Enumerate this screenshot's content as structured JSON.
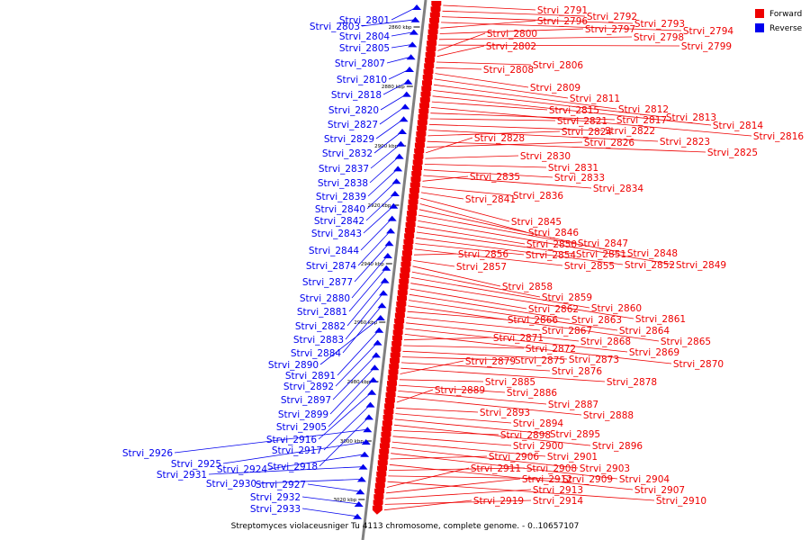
{
  "caption": "Streptomyces violaceusniger Tu 4113 chromosome, complete genome. - 0..10657107",
  "legend": {
    "items": [
      {
        "label": "Forward",
        "color": "#ee0000"
      },
      {
        "label": "Reverse",
        "color": "#0000ee"
      }
    ]
  },
  "colors": {
    "forward": "#ee0000",
    "reverse": "#0000ee",
    "axis": "#808080"
  },
  "ticks": [
    "2860 kbp",
    "2880 kbp",
    "2900 kbp",
    "2920 kbp",
    "2940 kbp",
    "2960 kbp",
    "2980 kbp",
    "3000 kbp",
    "3020 kbp"
  ],
  "reverse_genes": [
    "Strvi_2801",
    "Strvi_2803",
    "Strvi_2804",
    "Strvi_2805",
    "Strvi_2807",
    "Strvi_2810",
    "Strvi_2818",
    "Strvi_2820",
    "Strvi_2827",
    "Strvi_2829",
    "Strvi_2832",
    "Strvi_2837",
    "Strvi_2838",
    "Strvi_2839",
    "Strvi_2840",
    "Strvi_2842",
    "Strvi_2843",
    "Strvi_2844",
    "Strvi_2874",
    "Strvi_2877",
    "Strvi_2880",
    "Strvi_2881",
    "Strvi_2882",
    "Strvi_2883",
    "Strvi_2884",
    "Strvi_2890",
    "Strvi_2891",
    "Strvi_2892",
    "Strvi_2897",
    "Strvi_2899",
    "Strvi_2905",
    "Strvi_2916",
    "Strvi_2917",
    "Strvi_2918",
    "Strvi_2926",
    "Strvi_2925",
    "Strvi_2924",
    "Strvi_2931",
    "Strvi_2930",
    "Strvi_2927",
    "Strvi_2932",
    "Strvi_2933"
  ],
  "forward_genes": [
    "Strvi_2791",
    "Strvi_2792",
    "Strvi_2793",
    "Strvi_2794",
    "Strvi_2796",
    "Strvi_2797",
    "Strvi_2798",
    "Strvi_2799",
    "Strvi_2800",
    "Strvi_2802",
    "Strvi_2806",
    "Strvi_2808",
    "Strvi_2809",
    "Strvi_2811",
    "Strvi_2812",
    "Strvi_2813",
    "Strvi_2814",
    "Strvi_2815",
    "Strvi_2816",
    "Strvi_2817",
    "Strvi_2821",
    "Strvi_2822",
    "Strvi_2823",
    "Strvi_2824",
    "Strvi_2825",
    "Strvi_2826",
    "Strvi_2828",
    "Strvi_2830",
    "Strvi_2831",
    "Strvi_2833",
    "Strvi_2834",
    "Strvi_2835",
    "Strvi_2836",
    "Strvi_2841",
    "Strvi_2845",
    "Strvi_2846",
    "Strvi_2847",
    "Strvi_2848",
    "Strvi_2849",
    "Strvi_2850",
    "Strvi_2851",
    "Strvi_2852",
    "Strvi_2854",
    "Strvi_2855",
    "Strvi_2856",
    "Strvi_2857",
    "Strvi_2858",
    "Strvi_2859",
    "Strvi_2860",
    "Strvi_2861",
    "Strvi_2862",
    "Strvi_2863",
    "Strvi_2864",
    "Strvi_2865",
    "Strvi_2866",
    "Strvi_2867",
    "Strvi_2868",
    "Strvi_2869",
    "Strvi_2870",
    "Strvi_2871",
    "Strvi_2872",
    "Strvi_2873",
    "Strvi_2875",
    "Strvi_2876",
    "Strvi_2878",
    "Strvi_2879",
    "Strvi_2885",
    "Strvi_2886",
    "Strvi_2887",
    "Strvi_2888",
    "Strvi_2889",
    "Strvi_2893",
    "Strvi_2894",
    "Strvi_2895",
    "Strvi_2896",
    "Strvi_2898",
    "Strvi_2900",
    "Strvi_2901",
    "Strvi_2903",
    "Strvi_2904",
    "Strvi_2906",
    "Strvi_2907",
    "Strvi_2908",
    "Strvi_2909",
    "Strvi_2910",
    "Strvi_2911",
    "Strvi_2912",
    "Strvi_2913",
    "Strvi_2914",
    "Strvi_2919"
  ]
}
